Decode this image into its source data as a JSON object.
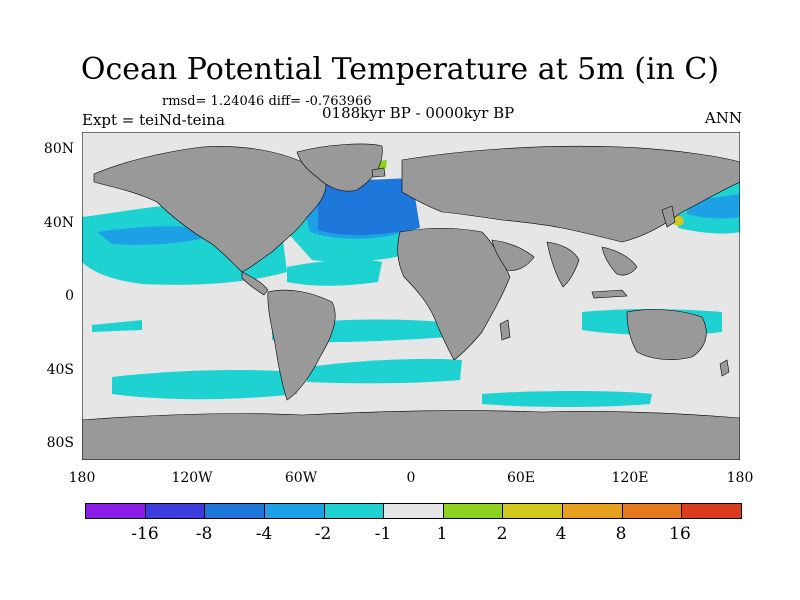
{
  "title": "Ocean Potential Temperature at 5m (in C)",
  "stats": "rmsd= 1.24046 diff= -0.763966",
  "experiment": "Expt = teiNd-teina",
  "period": "0188kyr BP - 0000kyr BP",
  "season": "ANN",
  "lat_labels": [
    "80N",
    "40N",
    "0",
    "40S",
    "80S"
  ],
  "lon_labels": [
    "180",
    "120W",
    "60W",
    "0",
    "60E",
    "120E",
    "180"
  ],
  "colorbar": {
    "colors": [
      "#8a1ee6",
      "#3c3cdc",
      "#1e78dc",
      "#1ea0e6",
      "#1ed2d2",
      "#e6e6e6",
      "#8cd21e",
      "#d2c81e",
      "#e6a01e",
      "#e6781e",
      "#dc3c1e"
    ],
    "labels": [
      "-16",
      "-8",
      "-4",
      "-2",
      "-1",
      "1",
      "2",
      "4",
      "8",
      "16"
    ]
  },
  "map_colors": {
    "neutral": "#e6e6e6",
    "land": "#999999",
    "light_cyan": "#1ed2d2",
    "sky": "#1ea0e6",
    "mid_blue": "#1e78dc",
    "green": "#8cd21e",
    "yellow": "#d2c81e"
  }
}
